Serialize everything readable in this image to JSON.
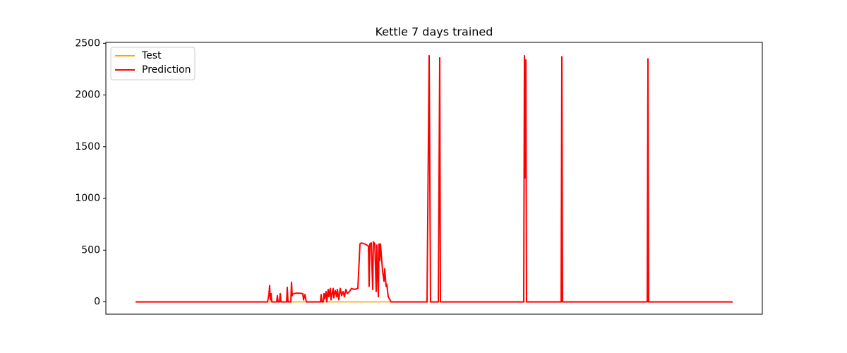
{
  "chart_data": {
    "type": "line",
    "title": "Kettle 7 days trained",
    "x": [
      0,
      187,
      189,
      190,
      191,
      192,
      193,
      200,
      201,
      202,
      204,
      205,
      206,
      214,
      215,
      216,
      220,
      221,
      222,
      223,
      230,
      237,
      238,
      240,
      242,
      262,
      263,
      264,
      266,
      267,
      268,
      270,
      271,
      273,
      274,
      276,
      277,
      278,
      280,
      281,
      283,
      285,
      286,
      288,
      290,
      292,
      294,
      296,
      298,
      300,
      303,
      306,
      310,
      315,
      318,
      320,
      325,
      330,
      331,
      332,
      334,
      336,
      337,
      339,
      341,
      342,
      344,
      345,
      346,
      347,
      350,
      352,
      353,
      355,
      356,
      358,
      362,
      413,
      416,
      418,
      429,
      431,
      432,
      550,
      551,
      552,
      553,
      554,
      603,
      604,
      605,
      725,
      726,
      727,
      846
    ],
    "series": [
      {
        "name": "Test",
        "color": "#ffa500",
        "values": [
          0,
          0,
          0,
          0,
          0,
          0,
          0,
          0,
          0,
          0,
          0,
          0,
          0,
          0,
          0,
          0,
          0,
          0,
          0,
          0,
          0,
          0,
          0,
          0,
          0,
          0,
          0,
          0,
          0,
          0,
          0,
          0,
          0,
          0,
          0,
          0,
          0,
          0,
          0,
          0,
          0,
          0,
          0,
          0,
          0,
          0,
          0,
          0,
          0,
          0,
          0,
          0,
          0,
          0,
          0,
          0,
          0,
          0,
          0,
          0,
          0,
          0,
          0,
          0,
          0,
          0,
          0,
          0,
          0,
          0,
          0,
          0,
          0,
          0,
          0,
          0,
          0,
          0,
          0,
          0,
          0,
          0,
          0,
          0,
          0,
          0,
          0,
          0,
          0,
          0,
          0,
          0,
          0,
          0,
          0
        ]
      },
      {
        "name": "Prediction",
        "color": "#ff0000",
        "values": [
          0,
          0,
          70,
          157,
          20,
          80,
          0,
          0,
          60,
          0,
          0,
          80,
          0,
          0,
          140,
          0,
          0,
          190,
          60,
          80,
          85,
          80,
          20,
          70,
          0,
          0,
          70,
          0,
          0,
          80,
          30,
          100,
          0,
          120,
          50,
          130,
          20,
          60,
          130,
          40,
          110,
          50,
          120,
          20,
          130,
          60,
          100,
          50,
          120,
          80,
          100,
          130,
          120,
          130,
          560,
          570,
          560,
          540,
          150,
          560,
          570,
          120,
          580,
          560,
          100,
          550,
          50,
          560,
          400,
          560,
          300,
          200,
          320,
          150,
          170,
          50,
          0,
          0,
          2380,
          0,
          0,
          2360,
          0,
          0,
          2380,
          1200,
          2340,
          0,
          0,
          2370,
          0,
          0,
          2350,
          0,
          0
        ]
      }
    ],
    "xlim": [
      -42,
      888
    ],
    "ylim": [
      -119,
      2509
    ],
    "yticks": [
      0,
      500,
      1000,
      1500,
      2000,
      2500
    ],
    "legend": "upper left"
  }
}
